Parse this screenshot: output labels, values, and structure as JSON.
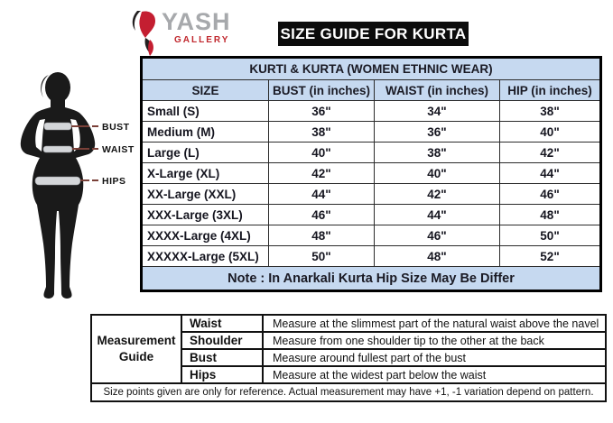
{
  "logo": {
    "name": "YASH",
    "sub": "GALLERY"
  },
  "header": {
    "title": "SIZE GUIDE FOR KURTA"
  },
  "figure": {
    "labels": [
      "BUST",
      "WAIST",
      "HIPS"
    ]
  },
  "size_table": {
    "title": "KURTI & KURTA (WOMEN ETHNIC WEAR)",
    "columns": [
      "SIZE",
      "BUST (in inches)",
      "WAIST (in inches)",
      "HIP (in inches)"
    ],
    "rows": [
      [
        "Small (S)",
        "36\"",
        "34\"",
        "38\""
      ],
      [
        "Medium (M)",
        "38\"",
        "36\"",
        "40\""
      ],
      [
        "Large (L)",
        "40\"",
        "38\"",
        "42\""
      ],
      [
        "X-Large (XL)",
        "42\"",
        "40\"",
        "44\""
      ],
      [
        "XX-Large (XXL)",
        "44\"",
        "42\"",
        "46\""
      ],
      [
        "XXX-Large (3XL)",
        "46\"",
        "44\"",
        "48\""
      ],
      [
        "XXXX-Large (4XL)",
        "48\"",
        "46\"",
        "50\""
      ],
      [
        "XXXXX-Large (5XL)",
        "50\"",
        "48\"",
        "52\""
      ]
    ],
    "note": "Note : In Anarkali Kurta Hip Size May Be Differ"
  },
  "measurement_guide": {
    "label": "Measurement Guide",
    "rows": [
      {
        "term": "Waist",
        "description": "Measure at the slimmest part of the natural waist above the navel"
      },
      {
        "term": "Shoulder",
        "description": "Measure from one shoulder tip to the other at the back"
      },
      {
        "term": "Bust",
        "description": "Measure around fullest part of the bust"
      },
      {
        "term": "Hips",
        "description": "Measure at the widest part below the waist"
      }
    ],
    "footer": "Size points given are only for reference. Actual measurement may have +1, -1 variation depend on pattern."
  },
  "colors": {
    "table_header_blue": "#c6d9f0",
    "title_bar_black": "#0c0c0c",
    "logo_red": "#c0272d",
    "logo_gray": "#a7a9ac",
    "pointer_line_maroon": "#7a4038",
    "silhouette_black": "#1a1a1a"
  }
}
